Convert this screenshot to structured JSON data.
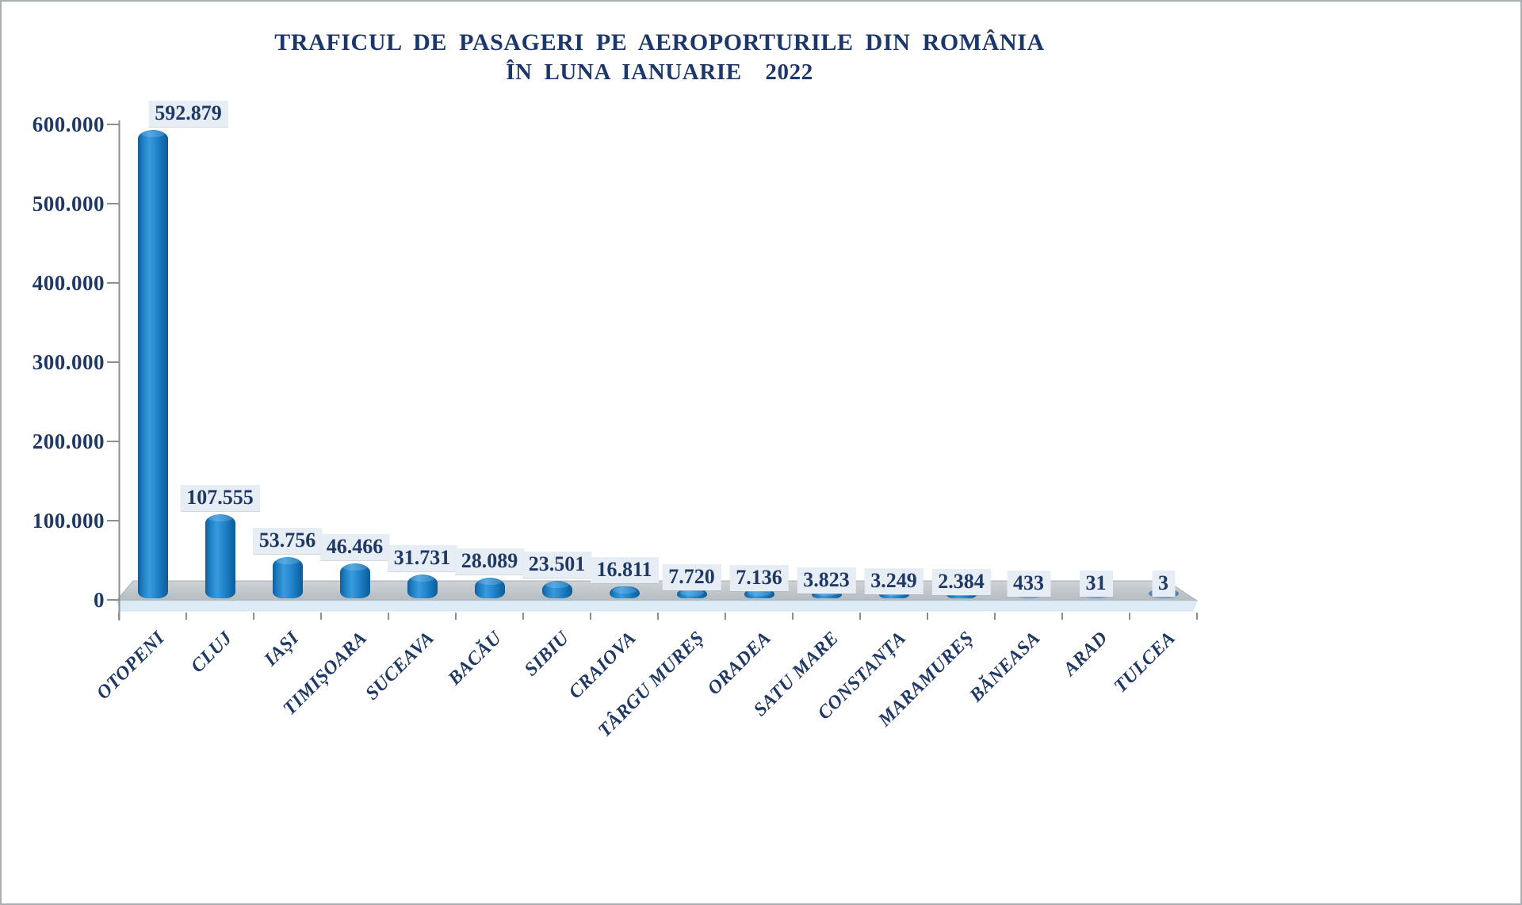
{
  "chart_data": {
    "type": "bar",
    "style": "3d-cylinder",
    "title": "TRAFICUL DE PASAGERI PE AEROPORTURILE DIN ROMÂNIA",
    "subtitle": "ÎN LUNA IANUARIE  2022",
    "categories": [
      "OTOPENI",
      "CLUJ",
      "IAȘI",
      "TIMIȘOARA",
      "SUCEAVA",
      "BACĂU",
      "SIBIU",
      "CRAIOVA",
      "TÂRGU MUREȘ",
      "ORADEA",
      "SATU MARE",
      "CONSTANȚA",
      "MARAMUREȘ",
      "BĂNEASA",
      "ARAD",
      "TULCEA"
    ],
    "values": [
      592879,
      107555,
      53756,
      46466,
      31731,
      28089,
      23501,
      16811,
      7720,
      7136,
      3823,
      3249,
      2384,
      433,
      31,
      3
    ],
    "value_labels": [
      "592.879",
      "107.555",
      "53.756",
      "46.466",
      "31.731",
      "28.089",
      "23.501",
      "16.811",
      "7.720",
      "7.136",
      "3.823",
      "3.249",
      "2.384",
      "433",
      "31",
      "3"
    ],
    "xlabel": "",
    "ylabel": "",
    "ylim": [
      0,
      600000
    ],
    "ytick_labels": [
      "0",
      "100.000",
      "200.000",
      "300.000",
      "400.000",
      "500.000",
      "600.000"
    ],
    "grid": false,
    "legend": "none"
  },
  "colors": {
    "title_text": "#1c3769",
    "axis_text": "#1f3864",
    "bar_blue": "#1d7cc4",
    "bar_blue_highlight": "#3a9ade",
    "bar_blue_dark": "#0e5c96",
    "tiny_bar_blue": "#6d9cc9",
    "value_label_bg": "#e7edf4",
    "floor_top": "#c3c8cc",
    "floor_front": "#dcebf5",
    "axis_line": "#8a8f94",
    "frame_border": "#a9aeb3",
    "background": "#ffffff"
  }
}
